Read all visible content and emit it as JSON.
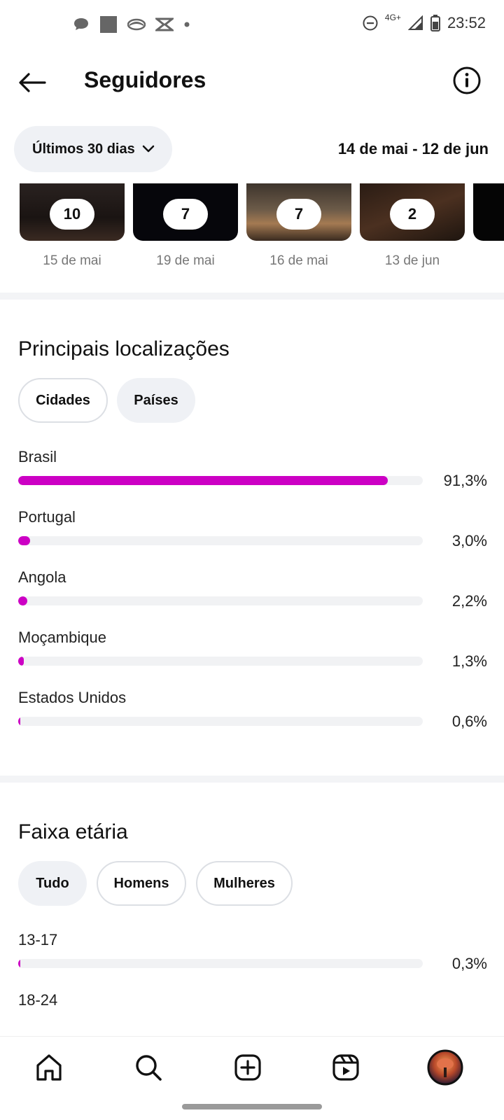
{
  "status_bar": {
    "time": "23:52",
    "network": "4G+",
    "left_icons": [
      "chat-bubble-icon",
      "square-icon",
      "eye-icon",
      "capcut-icon",
      "dot-icon"
    ],
    "right_icons": [
      "do-not-disturb-icon",
      "signal-icon",
      "battery-icon"
    ]
  },
  "header": {
    "title": "Seguidores",
    "back_icon": "arrow-left-icon",
    "info_icon": "info-icon"
  },
  "filters": {
    "period_label": "Últimos 30 dias",
    "date_range": "14 de mai - 12 de jun"
  },
  "content_items": [
    {
      "count": "10",
      "date": "15 de mai"
    },
    {
      "count": "7",
      "date": "19 de mai"
    },
    {
      "count": "7",
      "date": "16 de mai"
    },
    {
      "count": "2",
      "date": "13 de jun"
    }
  ],
  "locations": {
    "title": "Principais localizações",
    "tabs": [
      "Cidades",
      "Países"
    ],
    "items": [
      {
        "label": "Brasil",
        "value": "91,3%",
        "fraction": 0.913
      },
      {
        "label": "Portugal",
        "value": "3,0%",
        "fraction": 0.03
      },
      {
        "label": "Angola",
        "value": "2,2%",
        "fraction": 0.022
      },
      {
        "label": "Moçambique",
        "value": "1,3%",
        "fraction": 0.013
      },
      {
        "label": "Estados Unidos",
        "value": "0,6%",
        "fraction": 0.006
      }
    ]
  },
  "age": {
    "title": "Faixa etária",
    "tabs": [
      "Tudo",
      "Homens",
      "Mulheres"
    ],
    "items": [
      {
        "label": "13-17",
        "value": "0,3%",
        "fraction": 0.003
      },
      {
        "label": "18-24"
      }
    ]
  },
  "colors": {
    "accent_bar": "#cc00c4",
    "track": "#f1f2f4"
  },
  "bottom_nav": [
    "home-icon",
    "search-icon",
    "create-icon",
    "reels-icon",
    "profile-avatar"
  ]
}
